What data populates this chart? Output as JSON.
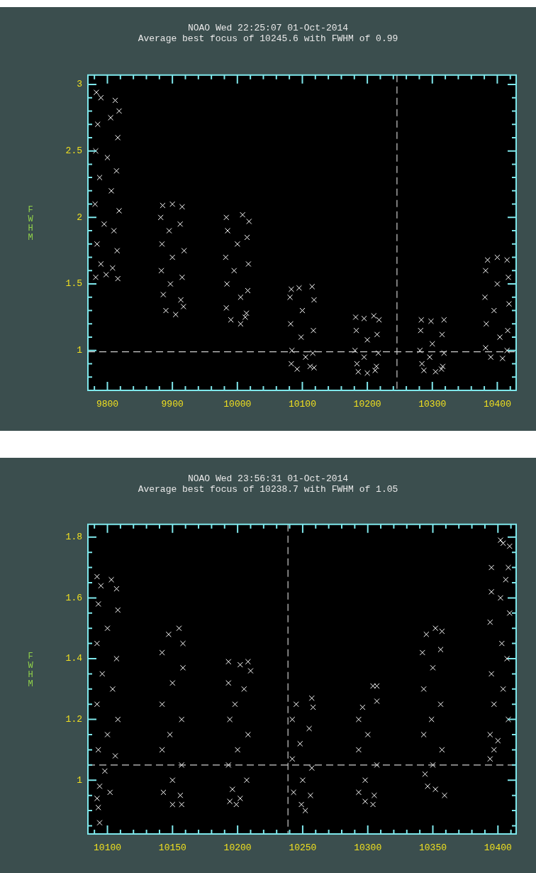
{
  "chart_data": [
    {
      "type": "scatter",
      "title": "NOAO Wed 22:25:07 01-Oct-2014",
      "subtitle": "Average best focus of 10245.6 with FWHM of 0.99",
      "ylabel": "FWHM",
      "marker": "cross",
      "legend": false,
      "xlim": [
        9770,
        10429
      ],
      "ylim": [
        0.7,
        3.07
      ],
      "xticks": [
        {
          "value": 9780,
          "label": null
        },
        9800,
        {
          "value": 9820,
          "label": null
        },
        {
          "value": 9840,
          "label": null
        },
        {
          "value": 9860,
          "label": null
        },
        {
          "value": 9880,
          "label": null
        },
        9900,
        {
          "value": 9920,
          "label": null
        },
        {
          "value": 9940,
          "label": null
        },
        {
          "value": 9960,
          "label": null
        },
        {
          "value": 9980,
          "label": null
        },
        10000,
        {
          "value": 10020,
          "label": null
        },
        {
          "value": 10040,
          "label": null
        },
        {
          "value": 10060,
          "label": null
        },
        {
          "value": 10080,
          "label": null
        },
        10100,
        {
          "value": 10120,
          "label": null
        },
        {
          "value": 10140,
          "label": null
        },
        {
          "value": 10160,
          "label": null
        },
        {
          "value": 10180,
          "label": null
        },
        10200,
        {
          "value": 10220,
          "label": null
        },
        {
          "value": 10240,
          "label": null
        },
        {
          "value": 10260,
          "label": null
        },
        {
          "value": 10280,
          "label": null
        },
        10300,
        {
          "value": 10320,
          "label": null
        },
        {
          "value": 10340,
          "label": null
        },
        {
          "value": 10360,
          "label": null
        },
        {
          "value": 10380,
          "label": null
        },
        10400,
        {
          "value": 10420,
          "label": null
        }
      ],
      "yticks": [
        {
          "value": 0.8,
          "label": null
        },
        {
          "value": 0.9,
          "label": null
        },
        1,
        {
          "value": 1.1,
          "label": null
        },
        {
          "value": 1.2,
          "label": null
        },
        {
          "value": 1.3,
          "label": null
        },
        {
          "value": 1.4,
          "label": null
        },
        1.5,
        {
          "value": 1.6,
          "label": null
        },
        {
          "value": 1.7,
          "label": null
        },
        {
          "value": 1.8,
          "label": null
        },
        {
          "value": 1.9,
          "label": null
        },
        2,
        {
          "value": 2.1,
          "label": null
        },
        {
          "value": 2.2,
          "label": null
        },
        {
          "value": 2.3,
          "label": null
        },
        {
          "value": 2.4,
          "label": null
        },
        2.5,
        {
          "value": 2.6,
          "label": null
        },
        {
          "value": 2.7,
          "label": null
        },
        {
          "value": 2.8,
          "label": null
        },
        {
          "value": 2.9,
          "label": null
        },
        3
      ],
      "ref_lines": [
        {
          "axis": "y",
          "value": 0.99,
          "color": "#cccccc",
          "line_style": "dashed"
        },
        {
          "axis": "x",
          "value": 10245.6,
          "color": "#cccccc",
          "line_style": "dashed"
        }
      ],
      "series": [
        {
          "color": "#ffffff",
          "x": [
            9783,
            9790,
            9812,
            9818,
            9785,
            9805,
            9816,
            9782,
            9800,
            9814,
            9788,
            9806,
            9781,
            9818,
            9795,
            9810,
            9784,
            9815,
            9790,
            9808,
            9782,
            9798,
            9816,
            9885,
            9900,
            9915,
            9882,
            9912,
            9895,
            9884,
            9918,
            9900,
            9883,
            9915,
            9897,
            9886,
            9913,
            9890,
            9905,
            9917,
            9983,
            10008,
            10018,
            9985,
            10015,
            10000,
            9982,
            10017,
            9995,
            9984,
            10016,
            10005,
            9983,
            10014,
            9990,
            10005,
            10012,
            10083,
            10095,
            10115,
            10081,
            10118,
            10100,
            10082,
            10117,
            10098,
            10084,
            10116,
            10105,
            10083,
            10112,
            10092,
            10118,
            10182,
            10195,
            10210,
            10218,
            10183,
            10215,
            10200,
            10181,
            10217,
            10195,
            10184,
            10214,
            10186,
            10200,
            10212,
            10283,
            10298,
            10318,
            10282,
            10315,
            10300,
            10281,
            10318,
            10296,
            10284,
            10316,
            10287,
            10305,
            10314,
            10385,
            10400,
            10415,
            10382,
            10417,
            10400,
            10381,
            10418,
            10395,
            10383,
            10416,
            10404,
            10382,
            10415,
            10390,
            10408
          ],
          "values": [
            2.94,
            2.9,
            2.88,
            2.8,
            2.7,
            2.75,
            2.6,
            2.5,
            2.45,
            2.35,
            2.3,
            2.2,
            2.1,
            2.05,
            1.95,
            1.9,
            1.8,
            1.75,
            1.65,
            1.62,
            1.55,
            1.57,
            1.54,
            2.09,
            2.1,
            2.08,
            2.0,
            1.95,
            1.9,
            1.8,
            1.75,
            1.7,
            1.6,
            1.55,
            1.5,
            1.42,
            1.38,
            1.3,
            1.27,
            1.33,
            2.0,
            2.02,
            1.97,
            1.9,
            1.85,
            1.8,
            1.7,
            1.65,
            1.6,
            1.5,
            1.45,
            1.4,
            1.32,
            1.28,
            1.23,
            1.2,
            1.25,
            1.46,
            1.47,
            1.48,
            1.4,
            1.38,
            1.3,
            1.2,
            1.15,
            1.1,
            1.0,
            0.98,
            0.95,
            0.9,
            0.88,
            0.86,
            0.87,
            1.25,
            1.24,
            1.26,
            1.23,
            1.15,
            1.12,
            1.08,
            1.0,
            0.98,
            0.95,
            0.9,
            0.88,
            0.84,
            0.83,
            0.85,
            1.23,
            1.22,
            1.23,
            1.15,
            1.12,
            1.05,
            1.0,
            0.98,
            0.95,
            0.9,
            0.88,
            0.85,
            0.84,
            0.86,
            1.68,
            1.7,
            1.68,
            1.6,
            1.55,
            1.5,
            1.4,
            1.35,
            1.3,
            1.2,
            1.15,
            1.1,
            1.02,
            1.0,
            0.95,
            0.94
          ]
        }
      ]
    },
    {
      "type": "scatter",
      "title": "NOAO Wed 23:56:31 01-Oct-2014",
      "subtitle": "Average best focus of 10238.7 with FWHM of 1.05",
      "ylabel": "FWHM",
      "marker": "cross",
      "legend": false,
      "xlim": [
        10085,
        10414
      ],
      "ylim": [
        0.823,
        1.842
      ],
      "xticks": [
        {
          "value": 10090,
          "label": null
        },
        10100,
        {
          "value": 10110,
          "label": null
        },
        {
          "value": 10120,
          "label": null
        },
        {
          "value": 10130,
          "label": null
        },
        {
          "value": 10140,
          "label": null
        },
        10150,
        {
          "value": 10160,
          "label": null
        },
        {
          "value": 10170,
          "label": null
        },
        {
          "value": 10180,
          "label": null
        },
        {
          "value": 10190,
          "label": null
        },
        10200,
        {
          "value": 10210,
          "label": null
        },
        {
          "value": 10220,
          "label": null
        },
        {
          "value": 10230,
          "label": null
        },
        {
          "value": 10240,
          "label": null
        },
        10250,
        {
          "value": 10260,
          "label": null
        },
        {
          "value": 10270,
          "label": null
        },
        {
          "value": 10280,
          "label": null
        },
        {
          "value": 10290,
          "label": null
        },
        10300,
        {
          "value": 10310,
          "label": null
        },
        {
          "value": 10320,
          "label": null
        },
        {
          "value": 10330,
          "label": null
        },
        {
          "value": 10340,
          "label": null
        },
        10350,
        {
          "value": 10360,
          "label": null
        },
        {
          "value": 10370,
          "label": null
        },
        {
          "value": 10380,
          "label": null
        },
        {
          "value": 10390,
          "label": null
        },
        10400,
        {
          "value": 10410,
          "label": null
        }
      ],
      "yticks": [
        {
          "value": 0.85,
          "label": null
        },
        {
          "value": 0.9,
          "label": null
        },
        {
          "value": 0.95,
          "label": null
        },
        1,
        {
          "value": 1.05,
          "label": null
        },
        {
          "value": 1.1,
          "label": null
        },
        {
          "value": 1.15,
          "label": null
        },
        1.2,
        {
          "value": 1.25,
          "label": null
        },
        {
          "value": 1.3,
          "label": null
        },
        {
          "value": 1.35,
          "label": null
        },
        1.4,
        {
          "value": 1.45,
          "label": null
        },
        {
          "value": 1.5,
          "label": null
        },
        {
          "value": 1.55,
          "label": null
        },
        1.6,
        {
          "value": 1.65,
          "label": null
        },
        {
          "value": 1.7,
          "label": null
        },
        {
          "value": 1.75,
          "label": null
        },
        1.8
      ],
      "ref_lines": [
        {
          "axis": "y",
          "value": 1.05,
          "color": "#cccccc",
          "line_style": "dashed"
        },
        {
          "axis": "x",
          "value": 10238.7,
          "color": "#cccccc",
          "line_style": "dashed"
        }
      ],
      "series": [
        {
          "color": "#ffffff",
          "x": [
            10092,
            10095,
            10103,
            10107,
            10093,
            10108,
            10100,
            10092,
            10107,
            10096,
            10104,
            10092,
            10108,
            10100,
            10093,
            10106,
            10098,
            10094,
            10102,
            10092,
            10093,
            10094,
            10147,
            10155,
            10158,
            10142,
            10158,
            10150,
            10142,
            10157,
            10148,
            10142,
            10157,
            10150,
            10143,
            10156,
            10150,
            10157,
            10193,
            10202,
            10208,
            10210,
            10193,
            10205,
            10198,
            10194,
            10208,
            10200,
            10193,
            10207,
            10196,
            10194,
            10202,
            10199,
            10245,
            10257,
            10258,
            10242,
            10255,
            10248,
            10242,
            10257,
            10250,
            10243,
            10256,
            10249,
            10252,
            10296,
            10304,
            10307,
            10293,
            10307,
            10300,
            10293,
            10307,
            10298,
            10293,
            10305,
            10298,
            10304,
            10345,
            10352,
            10357,
            10342,
            10356,
            10350,
            10343,
            10356,
            10349,
            10343,
            10357,
            10350,
            10344,
            10346,
            10352,
            10359,
            10402,
            10404,
            10409,
            10395,
            10408,
            10406,
            10395,
            10402,
            10409,
            10394,
            10403,
            10407,
            10395,
            10404,
            10397,
            10408,
            10394,
            10400,
            10397,
            10394
          ],
          "values": [
            1.67,
            1.64,
            1.66,
            1.63,
            1.58,
            1.56,
            1.5,
            1.45,
            1.4,
            1.35,
            1.3,
            1.25,
            1.2,
            1.15,
            1.1,
            1.08,
            1.03,
            0.98,
            0.96,
            0.94,
            0.91,
            0.86,
            1.48,
            1.5,
            1.45,
            1.42,
            1.37,
            1.32,
            1.25,
            1.2,
            1.15,
            1.1,
            1.05,
            1.0,
            0.96,
            0.95,
            0.92,
            0.92,
            1.39,
            1.38,
            1.39,
            1.36,
            1.32,
            1.3,
            1.25,
            1.2,
            1.15,
            1.1,
            1.05,
            1.0,
            0.97,
            0.93,
            0.94,
            0.92,
            1.25,
            1.27,
            1.24,
            1.2,
            1.17,
            1.12,
            1.07,
            1.04,
            1.0,
            0.96,
            0.95,
            0.92,
            0.9,
            1.24,
            1.31,
            1.31,
            1.2,
            1.26,
            1.15,
            1.1,
            1.05,
            1.0,
            0.96,
            0.95,
            0.93,
            0.92,
            1.48,
            1.5,
            1.49,
            1.42,
            1.43,
            1.37,
            1.3,
            1.25,
            1.2,
            1.15,
            1.1,
            1.05,
            1.02,
            0.98,
            0.97,
            0.95,
            1.79,
            1.78,
            1.77,
            1.7,
            1.7,
            1.66,
            1.62,
            1.6,
            1.55,
            1.52,
            1.45,
            1.4,
            1.35,
            1.3,
            1.25,
            1.2,
            1.15,
            1.13,
            1.1,
            1.07
          ]
        }
      ]
    }
  ]
}
